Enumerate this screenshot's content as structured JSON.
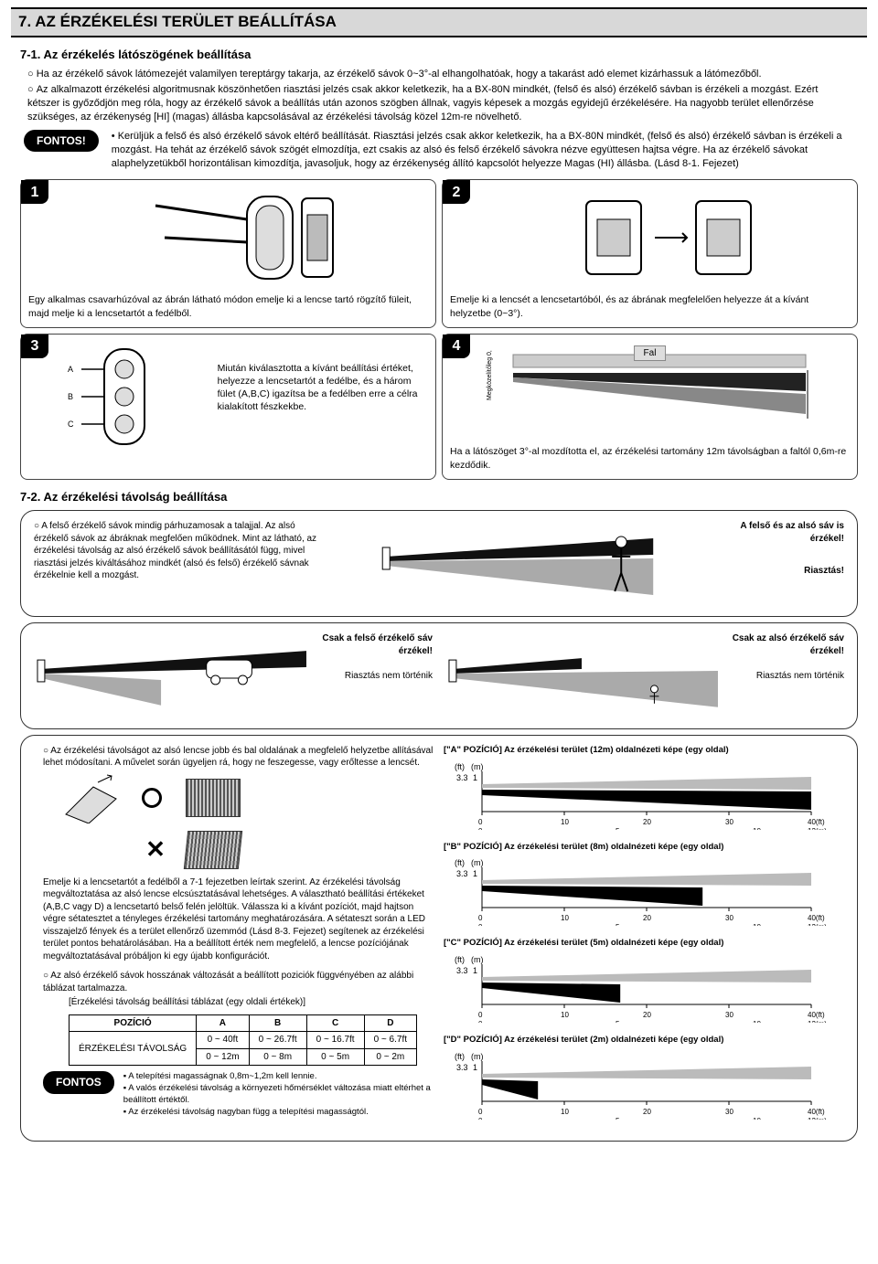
{
  "header": {
    "section_number": "7.",
    "section_title": "AZ ÉRZÉKELÉSI TERÜLET BEÁLLÍTÁSA"
  },
  "sub71": {
    "title": "7-1. Az érzékelés látószögének beállítása",
    "p1": "Ha az érzékelő sávok látómezejét valamilyen tereptárgy takarja, az érzékelő sávok 0~3°-al elhangolhatóak, hogy a takarást adó elemet kizárhassuk a látómezőből.",
    "p2": "Az alkalmazott érzékelési algoritmusnak köszönhetően riasztási jelzés csak akkor keletkezik, ha a BX-80N mindkét, (felső és alsó) érzékelő sávban is érzékeli a mozgást. Ezért kétszer is győződjön meg róla, hogy az érzékelő sávok a beállítás után azonos szögben állnak, vagyis képesek a mozgás egyidejű érzékelésére. Ha nagyobb terület ellenőrzése szükséges, az érzékenység [HI] (magas) állásba kapcsolásával az érzékelési távolság közel 12m-re növelhető.",
    "fontos_label": "FONTOS!",
    "fontos_text": "Kerüljük a felső és alsó érzékelő sávok eltérő beállítását. Riasztási jelzés csak akkor keletkezik, ha a BX-80N mindkét, (felső és alsó) érzékelő sávban is érzékeli a mozgást. Ha tehát az érzékelő sávok szögét elmozdítja, ezt csakis az alsó és felső érzékelő sávokra nézve együttesen hajtsa végre. Ha az érzékelő sávokat alaphelyzetükből horizontálisan kimozdítja, javasoljuk, hogy az érzékenység állító kapcsolót helyezze Magas (HI) állásba. (Lásd 8-1. Fejezet)"
  },
  "panels": {
    "p1": {
      "num": "1",
      "caption": "Egy alkalmas csavarhúzóval az ábrán látható módon emelje ki a lencse tartó rögzítő füleit, majd melje ki a lencsetartót a fedélből."
    },
    "p2": {
      "num": "2",
      "caption": "Emelje ki a lencsét a lencsetartóból, és az ábrának megfelelően helyezze át a kívánt helyzetbe (0~3°)."
    },
    "p3": {
      "num": "3",
      "caption": "Miután kiválasztotta a kívánt beállítási értéket, helyezze a lencsetartót a fedélbe, és a három fület (A,B,C) igazítsa be a fedélben erre a célra kialakított fészkekbe."
    },
    "p4": {
      "num": "4",
      "wall": "Fal",
      "mount": "Megközelítőleg 0,6m",
      "caption": "Ha a látószöget 3°-al mozdította el, az érzékelési tartomány 12m távolságban a faltól 0,6m-re kezdődik."
    }
  },
  "sub72": {
    "title": "7-2. Az érzékelési távolság beállítása",
    "top_text": "A felső érzékelő sávok mindig párhuzamosak a talajjal. Az alsó érzékelő sávok az ábráknak megfelően működnek. Mint az látható, az érzékelési távolság az alsó érzékelő sávok beállításától függ, mivel riasztási jelzés kiváltásához mindkét (alsó és felső) érzékelő sávnak érzékelnie kell a mozgást.",
    "both_label": "A felső és az alsó sáv is érzékel!",
    "alarm": "Riasztás!",
    "only_top": "Csak a felső érzékelő sáv érzékel!",
    "only_bottom": "Csak az alsó érzékelő sáv érzékel!",
    "no_alarm": "Riasztás nem történik",
    "adjust_text": "Az érzékelési távolságot az alsó lencse jobb és bal oldalának a megfelelő helyzetbe allításával lehet módosítani. A művelet során ügyeljen rá, hogy ne feszegesse, vagy erőltesse a lencsét.",
    "lift_text": "Emelje ki a lencsetartót a fedélből a 7-1 fejezetben leírtak szerint. Az érzékelési távolság megváltoztatása az alsó lencse elcsúsztatásával lehetséges. A választható beállítási értékeket (A,B,C vagy D) a lencsetartó belső felén jelöltük. Válassza ki a kívánt pozíciót, majd hajtson végre sétatesztet a tényleges érzékelési tartomány meghatározására. A sétateszt során a LED visszajelző fények és a terület ellenőrző üzemmód (Lásd 8-3. Fejezet) segítenek az érzékelési terület pontos behatárolásában. Ha a beállított érték nem megfelelő, a lencse pozíciójának megváltoztatásával próbáljon ki egy újabb konfigurációt.",
    "table_intro": "Az alsó érzékelő sávok hosszának változását a beállított poziciók függvényében az alábbi táblázat tartalmazza.",
    "table_caption": "[Érzékelési távolság beállítási táblázat (egy oldali értékek)]",
    "fontos2": "FONTOS",
    "fontos2_b1": "A telepítési magasságnak 0,8m~1,2m kell lennie.",
    "fontos2_b2": "A valós érzékelési távolság a környezeti hőmérséklet változása miatt eltérhet a beállított értéktől.",
    "fontos2_b3": "Az érzékelési távolság nagyban függ a telepítési magasságtól."
  },
  "range_table": {
    "h_pos": "POZÍCIÓ",
    "h_a": "A",
    "h_b": "B",
    "h_c": "C",
    "h_d": "D",
    "row_label": "ÉRZÉKELÉSI TÁVOLSÁG",
    "a_ft": "0 ~ 40ft",
    "b_ft": "0 ~ 26.7ft",
    "c_ft": "0 ~ 16.7ft",
    "d_ft": "0 ~ 6.7ft",
    "a_m": "0 ~ 12m",
    "b_m": "0 ~ 8m",
    "c_m": "0 ~ 5m",
    "d_m": "0 ~ 2m"
  },
  "charts": {
    "axis_ft": "(ft)",
    "axis_m": "(m)",
    "y_label_ft": "3.3",
    "y_label_m": "1",
    "x_ft": [
      "0",
      "10",
      "20",
      "30",
      "40(ft)"
    ],
    "x_m": [
      "0",
      "5",
      "10",
      "12(m)"
    ],
    "a_title": "[\"A\" POZÍCIÓ] Az érzékelési terület (12m) oldalnézeti képe (egy oldal)",
    "b_title": "[\"B\" POZÍCIÓ] Az érzékelési terület (8m) oldalnézeti képe (egy oldal)",
    "c_title": "[\"C\" POZÍCIÓ] Az érzékelési terület (5m) oldalnézeti képe (egy oldal)",
    "d_title": "[\"D\" POZÍCIÓ] Az érzékelési terület (2m) oldalnézeti képe (egy oldal)",
    "beam_color": "#000000",
    "grid_color": "#888888",
    "lengths": {
      "A": 1.0,
      "B": 0.67,
      "C": 0.42,
      "D": 0.17
    }
  }
}
